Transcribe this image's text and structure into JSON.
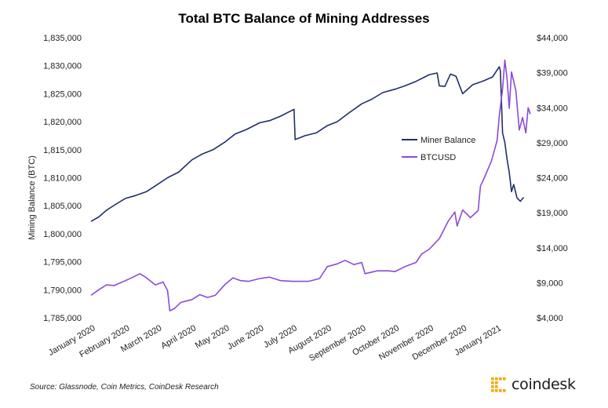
{
  "chart_data": {
    "type": "line",
    "title": "Total BTC Balance of Mining Addresses",
    "ylabel": "Mining Balance (BTC)",
    "y2label": "",
    "ylim": [
      1785000,
      1835000
    ],
    "y2lim": [
      4000,
      44000
    ],
    "xlim": [
      "2020-01-01",
      "2021-01-31"
    ],
    "x_ticks": [
      "January 2020",
      "February 2020",
      "March 2020",
      "April 2020",
      "May 2020",
      "June 2020",
      "July 2020",
      "August 2020",
      "September 2020",
      "October 2020",
      "November 2020",
      "December 2020",
      "January 2021"
    ],
    "x_tick_dates": [
      "2020-01-01",
      "2020-02-01",
      "2020-03-01",
      "2020-04-01",
      "2020-05-01",
      "2020-06-01",
      "2020-07-01",
      "2020-08-01",
      "2020-09-01",
      "2020-10-01",
      "2020-11-01",
      "2020-12-01",
      "2021-01-01"
    ],
    "y_ticks": [
      "1,785,000",
      "1,790,000",
      "1,795,000",
      "1,800,000",
      "1,805,000",
      "1,810,000",
      "1,815,000",
      "1,820,000",
      "1,825,000",
      "1,830,000",
      "1,835,000"
    ],
    "y_tick_values": [
      1785000,
      1790000,
      1795000,
      1800000,
      1805000,
      1810000,
      1815000,
      1820000,
      1825000,
      1830000,
      1835000
    ],
    "y2_ticks": [
      "$4,000",
      "$9,000",
      "$14,000",
      "$19,000",
      "$24,000",
      "$29,000",
      "$34,000",
      "$39,000",
      "$44,000"
    ],
    "y2_tick_values": [
      4000,
      9000,
      14000,
      19000,
      24000,
      29000,
      34000,
      39000,
      44000
    ],
    "grid": false,
    "legend_position": "center-right",
    "series": [
      {
        "name": "Miner Balance",
        "axis": "left",
        "color": "#1f2f6b",
        "points": [
          [
            "2020-01-01",
            1802200
          ],
          [
            "2020-01-08",
            1803000
          ],
          [
            "2020-01-15",
            1804200
          ],
          [
            "2020-01-22",
            1805100
          ],
          [
            "2020-02-01",
            1806300
          ],
          [
            "2020-02-10",
            1806800
          ],
          [
            "2020-02-20",
            1807500
          ],
          [
            "2020-03-01",
            1808800
          ],
          [
            "2020-03-10",
            1810000
          ],
          [
            "2020-03-20",
            1811000
          ],
          [
            "2020-04-01",
            1813200
          ],
          [
            "2020-04-10",
            1814200
          ],
          [
            "2020-04-20",
            1815000
          ],
          [
            "2020-05-01",
            1816400
          ],
          [
            "2020-05-10",
            1817800
          ],
          [
            "2020-05-20",
            1818600
          ],
          [
            "2020-06-01",
            1819800
          ],
          [
            "2020-06-10",
            1820200
          ],
          [
            "2020-06-20",
            1821000
          ],
          [
            "2020-06-28",
            1821800
          ],
          [
            "2020-07-02",
            1822200
          ],
          [
            "2020-07-03",
            1816800
          ],
          [
            "2020-07-12",
            1817500
          ],
          [
            "2020-07-22",
            1818000
          ],
          [
            "2020-08-01",
            1819300
          ],
          [
            "2020-08-10",
            1820000
          ],
          [
            "2020-08-20",
            1821500
          ],
          [
            "2020-09-01",
            1823200
          ],
          [
            "2020-09-10",
            1824000
          ],
          [
            "2020-09-20",
            1825200
          ],
          [
            "2020-10-01",
            1825800
          ],
          [
            "2020-10-10",
            1826400
          ],
          [
            "2020-10-20",
            1827200
          ],
          [
            "2020-11-01",
            1828400
          ],
          [
            "2020-11-08",
            1828700
          ],
          [
            "2020-11-10",
            1826400
          ],
          [
            "2020-11-15",
            1826300
          ],
          [
            "2020-11-20",
            1828500
          ],
          [
            "2020-11-25",
            1828100
          ],
          [
            "2020-12-01",
            1825000
          ],
          [
            "2020-12-10",
            1826600
          ],
          [
            "2020-12-20",
            1827300
          ],
          [
            "2020-12-28",
            1828000
          ],
          [
            "2021-01-03",
            1829800
          ],
          [
            "2021-01-04",
            1829100
          ],
          [
            "2021-01-06",
            1818000
          ],
          [
            "2021-01-08",
            1816300
          ],
          [
            "2021-01-10",
            1813300
          ],
          [
            "2021-01-12",
            1811000
          ],
          [
            "2021-01-14",
            1807500
          ],
          [
            "2021-01-16",
            1808800
          ],
          [
            "2021-01-19",
            1806400
          ],
          [
            "2021-01-22",
            1805800
          ],
          [
            "2021-01-25",
            1806500
          ]
        ]
      },
      {
        "name": "BTCUSD",
        "axis": "right",
        "color": "#8b4bd6",
        "points": [
          [
            "2020-01-01",
            7200
          ],
          [
            "2020-01-08",
            8000
          ],
          [
            "2020-01-15",
            8700
          ],
          [
            "2020-01-22",
            8600
          ],
          [
            "2020-02-01",
            9300
          ],
          [
            "2020-02-08",
            9800
          ],
          [
            "2020-02-14",
            10300
          ],
          [
            "2020-02-20",
            9700
          ],
          [
            "2020-02-28",
            8700
          ],
          [
            "2020-03-06",
            9100
          ],
          [
            "2020-03-10",
            7900
          ],
          [
            "2020-03-12",
            5000
          ],
          [
            "2020-03-16",
            5300
          ],
          [
            "2020-03-22",
            6200
          ],
          [
            "2020-04-01",
            6600
          ],
          [
            "2020-04-08",
            7300
          ],
          [
            "2020-04-15",
            6900
          ],
          [
            "2020-04-22",
            7200
          ],
          [
            "2020-05-01",
            8800
          ],
          [
            "2020-05-08",
            9700
          ],
          [
            "2020-05-15",
            9300
          ],
          [
            "2020-05-22",
            9200
          ],
          [
            "2020-06-01",
            9600
          ],
          [
            "2020-06-10",
            9800
          ],
          [
            "2020-06-20",
            9300
          ],
          [
            "2020-07-01",
            9200
          ],
          [
            "2020-07-15",
            9200
          ],
          [
            "2020-07-25",
            9600
          ],
          [
            "2020-08-01",
            11300
          ],
          [
            "2020-08-10",
            11700
          ],
          [
            "2020-08-17",
            12200
          ],
          [
            "2020-08-25",
            11600
          ],
          [
            "2020-09-01",
            11900
          ],
          [
            "2020-09-04",
            10300
          ],
          [
            "2020-09-15",
            10700
          ],
          [
            "2020-09-25",
            10700
          ],
          [
            "2020-10-01",
            10600
          ],
          [
            "2020-10-10",
            11300
          ],
          [
            "2020-10-20",
            11900
          ],
          [
            "2020-10-25",
            13100
          ],
          [
            "2020-11-01",
            13800
          ],
          [
            "2020-11-10",
            15300
          ],
          [
            "2020-11-18",
            17800
          ],
          [
            "2020-11-24",
            19100
          ],
          [
            "2020-11-26",
            17100
          ],
          [
            "2020-12-01",
            19400
          ],
          [
            "2020-12-08",
            18300
          ],
          [
            "2020-12-15",
            19300
          ],
          [
            "2020-12-17",
            22800
          ],
          [
            "2020-12-20",
            23800
          ],
          [
            "2020-12-27",
            26400
          ],
          [
            "2021-01-01",
            29300
          ],
          [
            "2021-01-03",
            32800
          ],
          [
            "2021-01-06",
            36700
          ],
          [
            "2021-01-08",
            40800
          ],
          [
            "2021-01-10",
            38200
          ],
          [
            "2021-01-12",
            33900
          ],
          [
            "2021-01-14",
            39100
          ],
          [
            "2021-01-18",
            36400
          ],
          [
            "2021-01-21",
            30800
          ],
          [
            "2021-01-24",
            32600
          ],
          [
            "2021-01-27",
            30400
          ],
          [
            "2021-01-29",
            34000
          ],
          [
            "2021-01-31",
            33100
          ]
        ]
      }
    ]
  },
  "footer": {
    "source": "Source: Glassnode, Coin Metrics, CoinDesk Research",
    "brand": "coindesk",
    "brand_color": "#f5a800",
    "logo_icon": "coindesk-logo-icon"
  }
}
